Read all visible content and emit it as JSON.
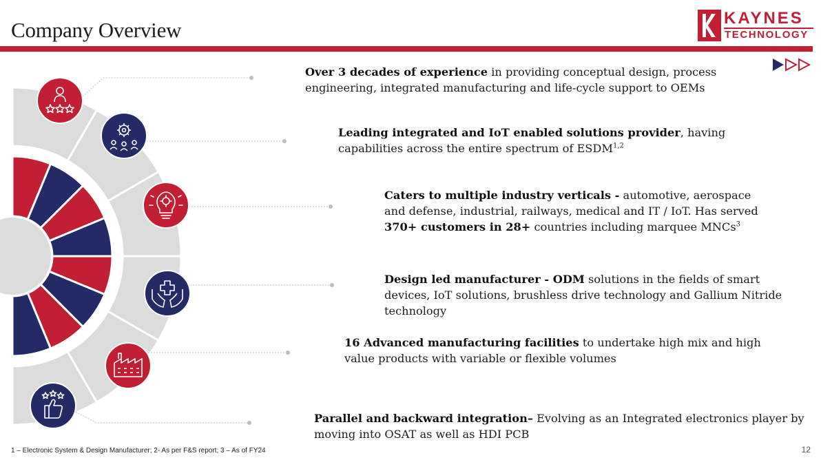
{
  "slide": {
    "title": "Company Overview",
    "page_number": "12",
    "footnote": "1 – Electronic System & Design Manufacturer; 2- As per F&S report; 3 – As of FY24"
  },
  "logo": {
    "top": "KAYNES",
    "bottom": "TECHNOLOGY"
  },
  "colors": {
    "brand_red": "#c21f34",
    "navy": "#232a66",
    "wheel_grey": "#dcdcdc"
  },
  "icons": [
    "customer-rating-icon",
    "gear-network-icon",
    "idea-bulb-icon",
    "helping-hands-icon",
    "factory-icon",
    "thumbs-up-stars-icon"
  ],
  "points": [
    {
      "bold": "Over 3 decades of experience",
      "text": " in providing conceptual design, process engineering, integrated manufacturing and life-cycle support to OEMs"
    },
    {
      "bold": "Leading integrated and IoT enabled solutions provider",
      "text": ", having capabilities across the entire spectrum of ESDM",
      "sup": "1,2"
    },
    {
      "bold": "Caters to multiple industry verticals -",
      "text": " automotive, aerospace and defense, industrial, railways, medical and IT / IoT. Has served ",
      "bold2": "370+ customers in 28+",
      "text2": " countries including marquee MNCs",
      "sup": "3"
    },
    {
      "bold": "Design led manufacturer - ODM",
      "text": " solutions in the fields of smart devices, IoT solutions, brushless drive technology and Gallium Nitride technology"
    },
    {
      "bold": "16 Advanced manufacturing facilities",
      "text": " to undertake high mix and high value products with variable or flexible volumes"
    },
    {
      "bold": "Parallel and backward integration–",
      "text": " Evolving as an Integrated electronics player by moving into OSAT as well as HDI PCB"
    }
  ]
}
